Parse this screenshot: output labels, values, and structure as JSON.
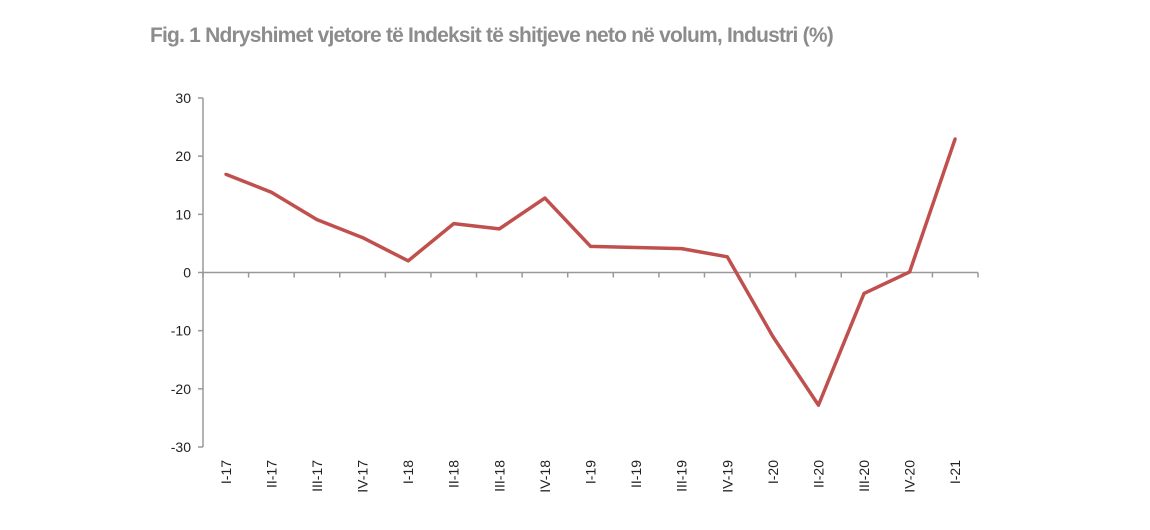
{
  "chart_data": {
    "type": "line",
    "title": "Fig. 1 Ndryshimet vjetore të Indeksit të shitjeve neto në volum, Industri (%)",
    "xlabel": "",
    "ylabel": "",
    "ylim": [
      -30,
      30
    ],
    "yticks": [
      30,
      20,
      10,
      0,
      -10,
      -20,
      -30
    ],
    "categories": [
      "I-17",
      "II-17",
      "III-17",
      "IV-17",
      "I-18",
      "II-18",
      "III-18",
      "IV-18",
      "I-19",
      "II-19",
      "III-19",
      "IV-19",
      "I-20",
      "II-20",
      "III-20",
      "IV-20",
      "I-21"
    ],
    "series": [
      {
        "name": "Industri",
        "color": "#c0504d",
        "values": [
          16.9,
          13.8,
          9.1,
          6.0,
          2.0,
          8.4,
          7.5,
          12.8,
          4.5,
          4.3,
          4.1,
          2.7,
          -11.0,
          -22.8,
          -3.6,
          0.1,
          23.0
        ]
      }
    ],
    "grid": false,
    "legend": "none"
  }
}
